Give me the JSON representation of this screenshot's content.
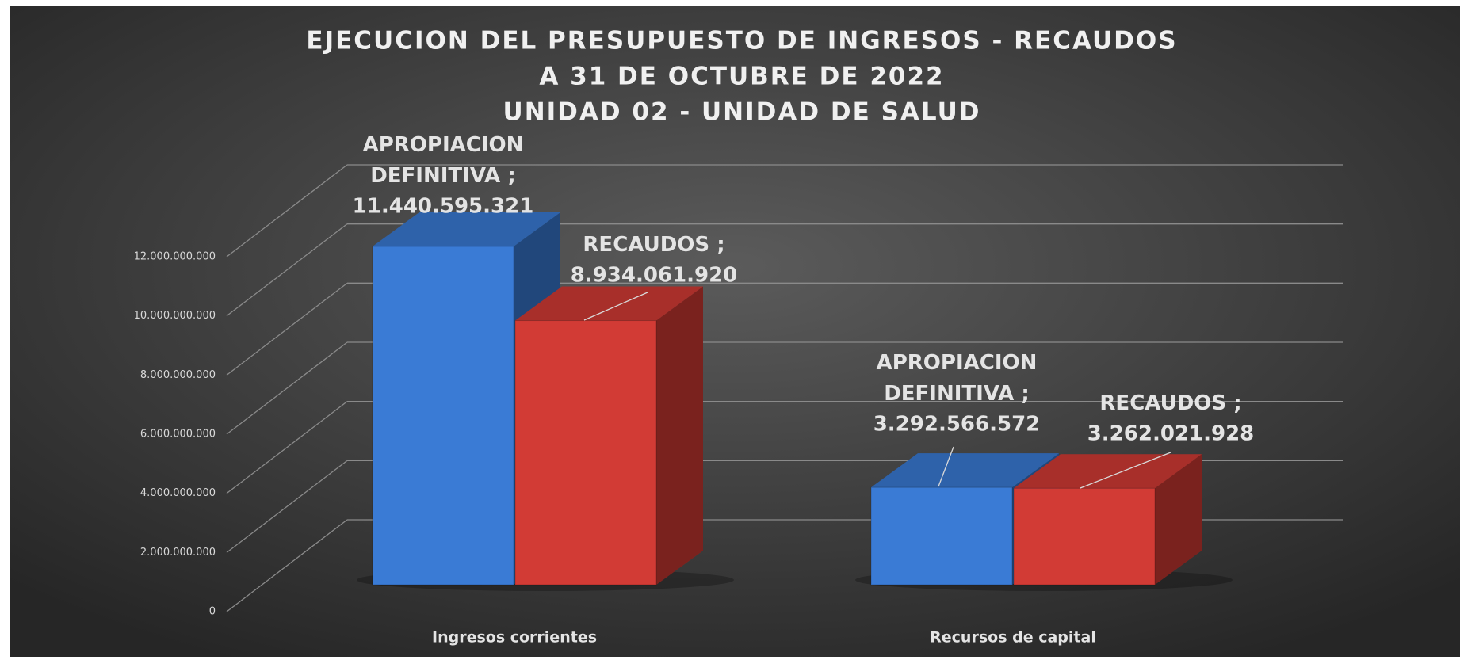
{
  "chart_data": {
    "type": "bar3d",
    "title": [
      "EJECUCION DEL PRESUPUESTO DE INGRESOS - RECAUDOS",
      "A 31 DE OCTUBRE DE 2022",
      "UNIDAD 02 - UNIDAD DE SALUD"
    ],
    "categories": [
      "Ingresos corrientes",
      "Recursos de capital"
    ],
    "series": [
      {
        "name": "APROPIACION DEFINITIVA",
        "color": "#3a7bd5",
        "values": [
          11440595321,
          3292566572
        ],
        "value_labels": [
          "11.440.595.321",
          "3.292.566.572"
        ]
      },
      {
        "name": "RECAUDOS",
        "color": "#d23b35",
        "values": [
          8934061920,
          3262021928
        ],
        "value_labels": [
          "8.934.061.920",
          "3.262.021.928"
        ]
      }
    ],
    "data_label_separator": ";",
    "ylim": [
      0,
      12000000000
    ],
    "yticks": [
      {
        "value": 0,
        "label": "0"
      },
      {
        "value": 2000000000,
        "label": "2.000.000.000"
      },
      {
        "value": 4000000000,
        "label": "4.000.000.000"
      },
      {
        "value": 6000000000,
        "label": "6.000.000.000"
      },
      {
        "value": 8000000000,
        "label": "8.000.000.000"
      },
      {
        "value": 10000000000,
        "label": "10.000.000.000"
      },
      {
        "value": 12000000000,
        "label": "12.000.000.000"
      }
    ],
    "grid": true
  }
}
